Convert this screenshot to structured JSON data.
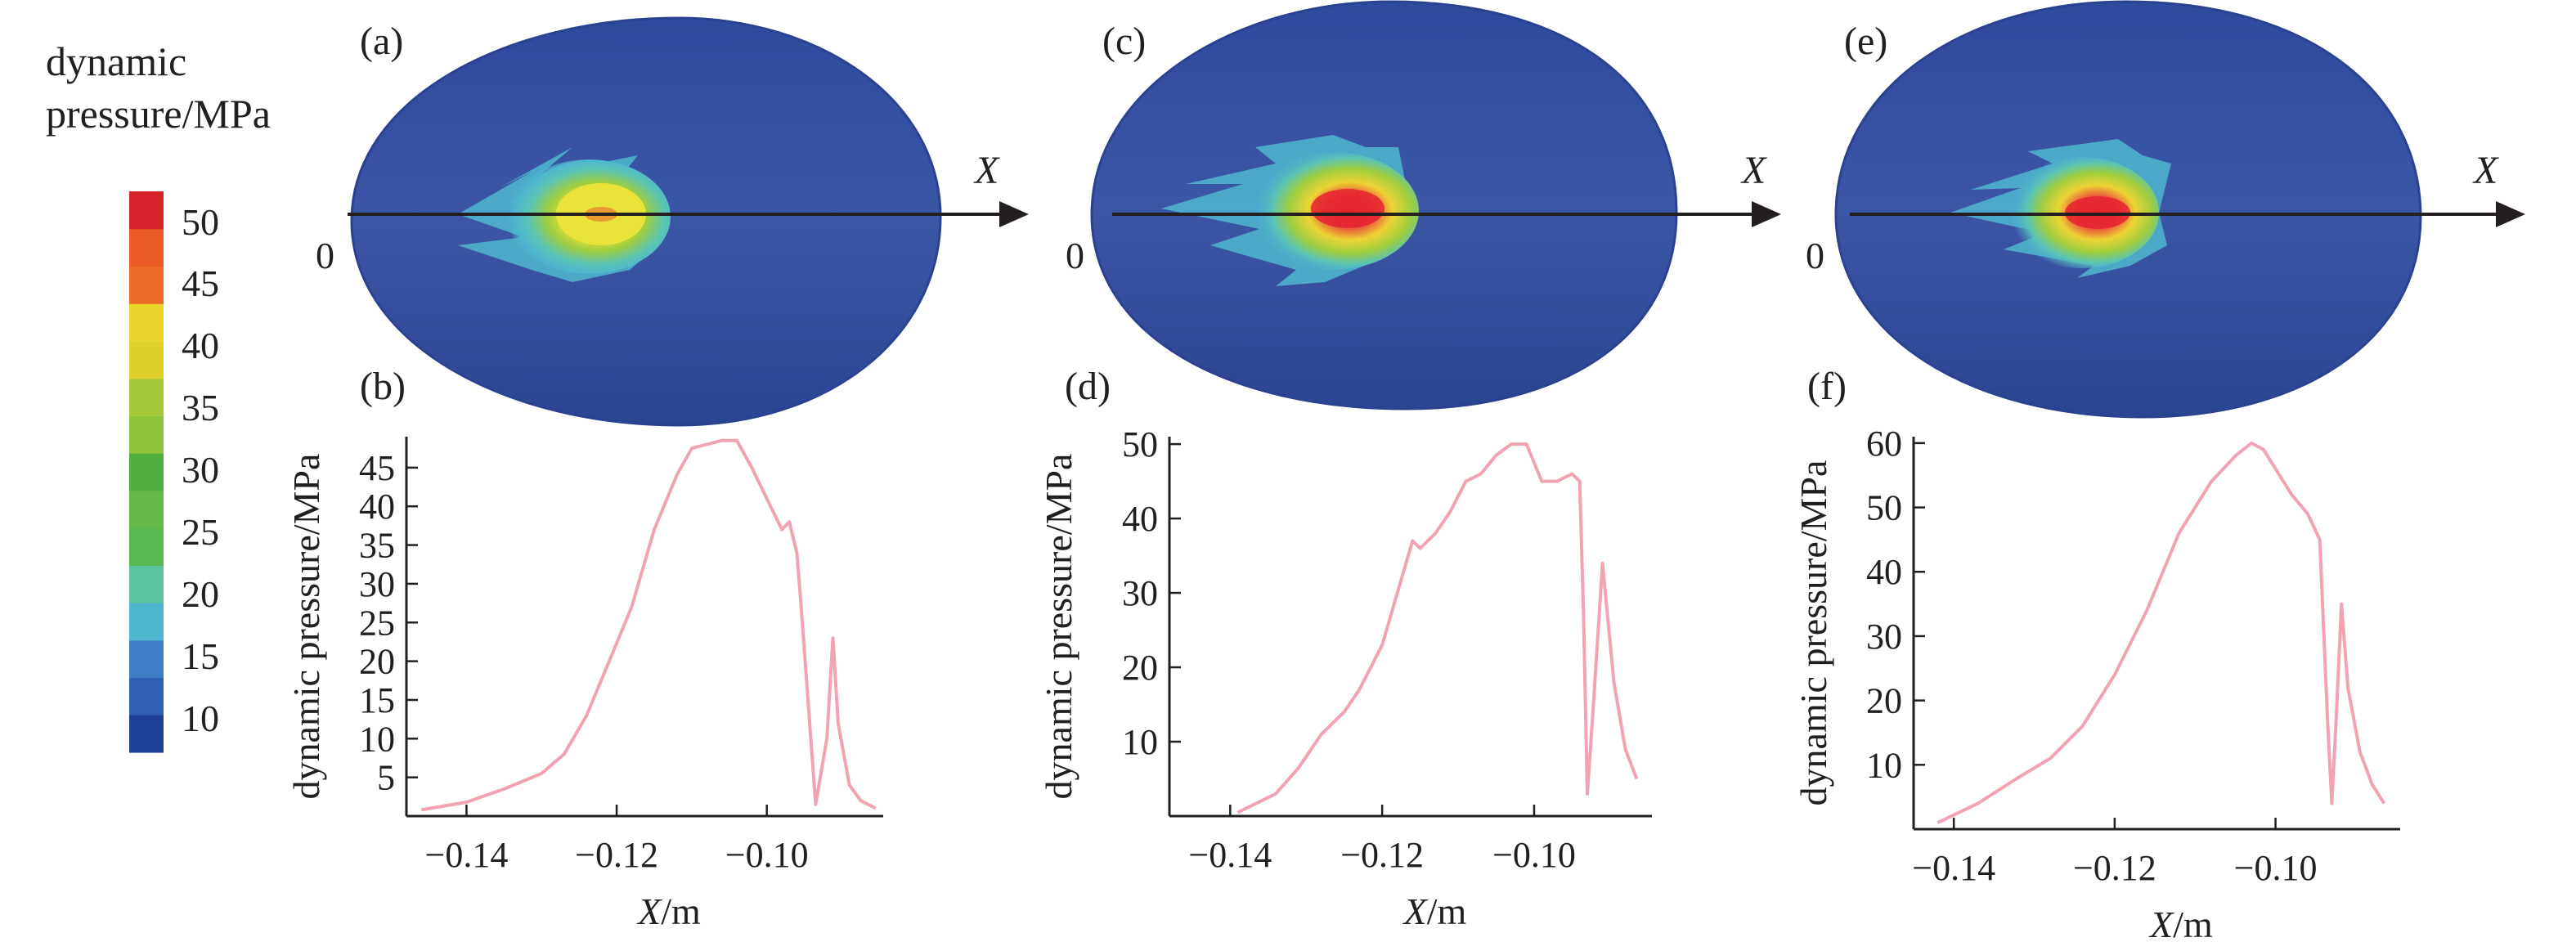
{
  "colorbar": {
    "title_line1": "dynamic",
    "title_line2": "pressure/MPa",
    "tick_labels": [
      "50",
      "45",
      "40",
      "35",
      "30",
      "25",
      "20",
      "15",
      "10"
    ],
    "colors": [
      "#1e3f95",
      "#2f60b3",
      "#3c7fc6",
      "#4fb7d0",
      "#5cc3a1",
      "#56b84f",
      "#62b946",
      "#4fad3e",
      "#8fc33c",
      "#a6c93a",
      "#e0d12a",
      "#ead32a",
      "#eb6b28",
      "#e85a26",
      "#d8232a"
    ]
  },
  "colors": {
    "egg_fill": "#3c56a6",
    "egg_edge": "#2f4894",
    "curve": "#f2a3b2",
    "axis": "#231f20"
  },
  "contours": [
    {
      "label": "(a)",
      "origin": "0",
      "axis_label": "X"
    },
    {
      "label": "(c)",
      "origin": "0",
      "axis_label": "X"
    },
    {
      "label": "(e)",
      "origin": "0",
      "axis_label": "X"
    }
  ],
  "chart_data": [
    {
      "type": "line",
      "panel_label": "(b)",
      "xlabel": "X/m",
      "ylabel": "dynamic pressure/MPa",
      "xlim": [
        -0.148,
        -0.0845
      ],
      "ylim": [
        0,
        49
      ],
      "xticks": [
        -0.14,
        -0.12,
        -0.1
      ],
      "xtick_labels": [
        "−0.14",
        "−0.12",
        "−0.10"
      ],
      "yticks": [
        5,
        10,
        15,
        20,
        25,
        30,
        35,
        40,
        45
      ],
      "ytick_labels": [
        "5",
        "10",
        "15",
        "20",
        "25",
        "30",
        "35",
        "40",
        "45"
      ],
      "series": [
        {
          "x": [
            -0.146,
            -0.14,
            -0.135,
            -0.13,
            -0.127,
            -0.124,
            -0.121,
            -0.118,
            -0.115,
            -0.112,
            -0.11,
            -0.108,
            -0.106,
            -0.104,
            -0.102,
            -0.1,
            -0.098,
            -0.097,
            -0.096,
            -0.0955,
            -0.0935,
            -0.092,
            -0.0912,
            -0.0905,
            -0.089,
            -0.0875,
            -0.0855
          ],
          "y": [
            0.8,
            1.8,
            3.5,
            5.5,
            8,
            13,
            20,
            27,
            37,
            44,
            47.5,
            48,
            48.5,
            48.5,
            45,
            41,
            37,
            38,
            34,
            28,
            1.5,
            10,
            23,
            12,
            4,
            2,
            1
          ]
        }
      ]
    },
    {
      "type": "line",
      "panel_label": "(d)",
      "xlabel": "X/m",
      "ylabel": "dynamic pressure/MPa",
      "xlim": [
        -0.148,
        -0.0845
      ],
      "ylim": [
        0,
        51
      ],
      "xticks": [
        -0.14,
        -0.12,
        -0.1
      ],
      "xtick_labels": [
        "−0.14",
        "−0.12",
        "−0.10"
      ],
      "yticks": [
        10,
        20,
        30,
        40,
        50
      ],
      "ytick_labels": [
        "10",
        "20",
        "30",
        "40",
        "50"
      ],
      "series": [
        {
          "x": [
            -0.139,
            -0.134,
            -0.131,
            -0.128,
            -0.125,
            -0.123,
            -0.12,
            -0.118,
            -0.116,
            -0.115,
            -0.113,
            -0.111,
            -0.109,
            -0.107,
            -0.105,
            -0.103,
            -0.101,
            -0.099,
            -0.097,
            -0.095,
            -0.094,
            -0.0935,
            -0.093,
            -0.0922,
            -0.091,
            -0.0895,
            -0.088,
            -0.0865
          ],
          "y": [
            0.5,
            3,
            6.5,
            11,
            14,
            17,
            23,
            30,
            37,
            36,
            38,
            41,
            45,
            46,
            48.5,
            50,
            50,
            45,
            45,
            46,
            45,
            27,
            3,
            15,
            34,
            18,
            9,
            5
          ]
        }
      ]
    },
    {
      "type": "line",
      "panel_label": "(f)",
      "xlabel": "X/m",
      "ylabel": "dynamic pressure/MPa",
      "xlim": [
        -0.145,
        -0.0845
      ],
      "ylim": [
        0,
        61
      ],
      "xticks": [
        -0.14,
        -0.12,
        -0.1
      ],
      "xtick_labels": [
        "−0.14",
        "−0.12",
        "−0.10"
      ],
      "yticks": [
        10,
        20,
        30,
        40,
        50,
        60
      ],
      "ytick_labels": [
        "10",
        "20",
        "30",
        "40",
        "50",
        "60"
      ],
      "series": [
        {
          "x": [
            -0.142,
            -0.137,
            -0.132,
            -0.128,
            -0.124,
            -0.12,
            -0.116,
            -0.112,
            -0.108,
            -0.105,
            -0.103,
            -0.1015,
            -0.1,
            -0.098,
            -0.096,
            -0.0945,
            -0.0935,
            -0.093,
            -0.0925,
            -0.0918,
            -0.091,
            -0.0895,
            -0.088,
            -0.0865
          ],
          "y": [
            1,
            4,
            8,
            11,
            16,
            24,
            34,
            46,
            54,
            58,
            60,
            59,
            56,
            52,
            49,
            45,
            16,
            4,
            16,
            35,
            22,
            12,
            7,
            4
          ]
        }
      ]
    }
  ]
}
